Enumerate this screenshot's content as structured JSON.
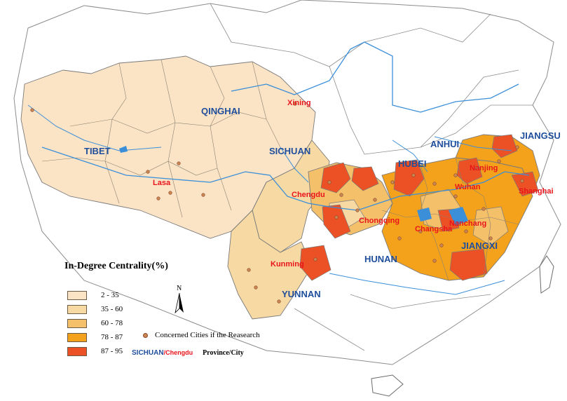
{
  "legend": {
    "title": "In-Degree Centrality(%)",
    "classes": [
      {
        "range": "2 - 35",
        "color": "#fbe4c6"
      },
      {
        "range": "35 - 60",
        "color": "#f7d9a4"
      },
      {
        "range": "60 - 78",
        "color": "#f4c06a"
      },
      {
        "range": "78 - 87",
        "color": "#f4a21c"
      },
      {
        "range": "87 - 95",
        "color": "#ec5125"
      }
    ],
    "cities_note": "Concerned Cities if the Reasearch",
    "key_province": "SICHUAN",
    "key_separator": "/",
    "key_city": "Chengdu",
    "key_label": "Province/City"
  },
  "north_arrow": {
    "label": "N"
  },
  "provinces": {
    "qinghai": "QINGHAI",
    "tibet": "TIBET",
    "sichuan": "SICHUAN",
    "yunnan": "YUNNAN",
    "hubei": "HUBEI",
    "hunan": "HUNAN",
    "anhui": "ANHUI",
    "jiangsu": "JIANGSU",
    "jiangxi": "JIANGXI"
  },
  "cities": {
    "xining": "Xining",
    "lasa": "Lasa",
    "chengdu": "Chengdu",
    "chongqing": "Chongqing",
    "kunming": "Kunming",
    "wuhan": "Wuhan",
    "nanjing": "Nanjing",
    "shanghai": "Shanghai",
    "changsha": "Changsha",
    "nanchang": "Nanchang"
  },
  "colors": {
    "river": "#3b8fd8",
    "boundary": "#7a7a7a",
    "province_label": "#1f4e9c",
    "city_label": "#e8141b"
  }
}
